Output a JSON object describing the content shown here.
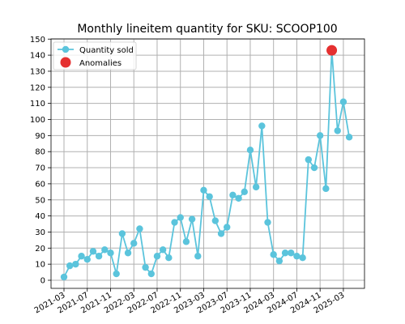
{
  "chart_data": {
    "type": "line",
    "title": "Monthly lineitem quantity for SKU: SCOOP100",
    "xlabel": "",
    "ylabel": "",
    "ylim": [
      0,
      150
    ],
    "y_ticks": [
      0,
      10,
      20,
      30,
      40,
      50,
      60,
      70,
      80,
      90,
      100,
      110,
      120,
      130,
      140,
      150
    ],
    "x_tick_labels": [
      "2021-03",
      "2021-07",
      "2021-11",
      "2022-03",
      "2022-07",
      "2022-11",
      "2023-03",
      "2023-07",
      "2023-11",
      "2024-03",
      "2024-07",
      "2024-11",
      "2025-03"
    ],
    "grid": true,
    "legend_position": "top-left",
    "x": [
      "2021-03",
      "2021-04",
      "2021-05",
      "2021-06",
      "2021-07",
      "2021-08",
      "2021-09",
      "2021-10",
      "2021-11",
      "2021-12",
      "2022-01",
      "2022-02",
      "2022-03",
      "2022-04",
      "2022-05",
      "2022-06",
      "2022-07",
      "2022-08",
      "2022-09",
      "2022-10",
      "2022-11",
      "2022-12",
      "2023-01",
      "2023-02",
      "2023-03",
      "2023-04",
      "2023-05",
      "2023-06",
      "2023-07",
      "2023-08",
      "2023-09",
      "2023-10",
      "2023-11",
      "2023-12",
      "2024-01",
      "2024-02",
      "2024-03",
      "2024-04",
      "2024-05",
      "2024-06",
      "2024-07",
      "2024-08",
      "2024-09",
      "2024-10",
      "2024-11",
      "2024-12",
      "2025-01",
      "2025-02",
      "2025-03",
      "2025-04"
    ],
    "series": [
      {
        "name": "Quantity sold",
        "color": "#5bc4dc",
        "values": [
          2,
          9,
          10,
          15,
          13,
          18,
          15,
          19,
          17,
          4,
          29,
          17,
          23,
          32,
          8,
          4,
          15,
          19,
          14,
          36,
          39,
          24,
          38,
          15,
          56,
          52,
          37,
          29,
          33,
          53,
          51,
          55,
          81,
          58,
          96,
          36,
          16,
          12,
          17,
          17,
          15,
          14,
          75,
          70,
          90,
          57,
          143,
          93,
          111,
          89
        ]
      }
    ],
    "anomalies": {
      "name": "Anomalies",
      "color": "#e53030",
      "points": [
        {
          "x": "2025-01",
          "y": 143
        }
      ]
    }
  }
}
